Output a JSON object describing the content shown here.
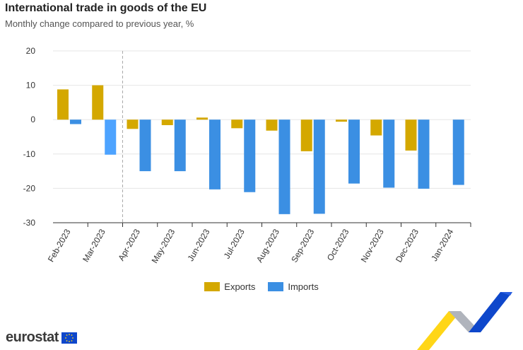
{
  "header": {
    "title": "International trade in goods of the EU",
    "subtitle": "Monthly change compared to previous year, %"
  },
  "legend": {
    "exports_label": "Exports",
    "imports_label": "Imports"
  },
  "logo": {
    "text": "eurostat"
  },
  "colors": {
    "exports": "#d4a800",
    "imports": "#3b8fe3",
    "imports_highlight": "#4da3ff",
    "grid": "#e6e6e6"
  },
  "chart_data": {
    "type": "bar",
    "title": "International trade in goods of the EU",
    "subtitle": "Monthly change compared to previous year, %",
    "categories": [
      "Feb-2023",
      "Mar-2023",
      "Apr-2023",
      "May-2023",
      "Jun-2023",
      "Jul-2023",
      "Aug-2023",
      "Sep-2023",
      "Oct-2023",
      "Nov-2023",
      "Dec-2023",
      "Jan-2024"
    ],
    "series": [
      {
        "name": "Exports",
        "values": [
          8.8,
          10.0,
          -2.7,
          -1.6,
          0.6,
          -2.5,
          -3.2,
          -9.2,
          -0.6,
          -4.6,
          -9.0,
          0
        ]
      },
      {
        "name": "Imports",
        "values": [
          -1.3,
          -10.2,
          -15.0,
          -15.0,
          -20.3,
          -21.1,
          -27.5,
          -27.4,
          -18.6,
          -19.8,
          -20.1,
          -19.0
        ]
      }
    ],
    "yticks": [
      20,
      10,
      0,
      -10,
      -20,
      -30
    ],
    "ylim": [
      -30,
      20
    ],
    "xlabel": "",
    "ylabel": "",
    "grid": true,
    "legend_position": "bottom-center",
    "highlighted_category": "Mar-2023"
  }
}
